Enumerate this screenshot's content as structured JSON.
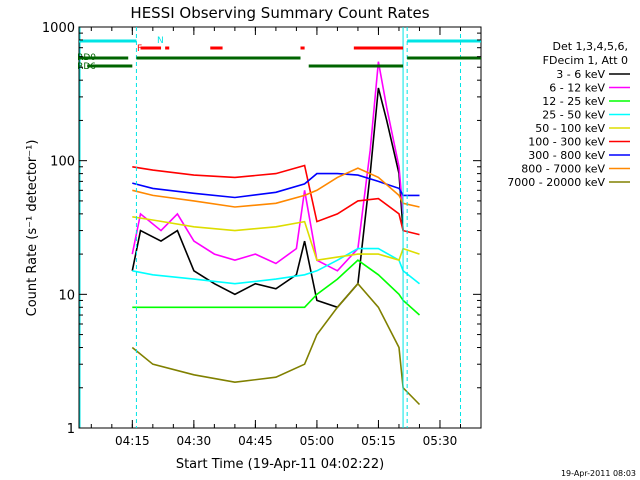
{
  "chart_data": {
    "type": "line",
    "title": "HESSI Observing Summary Count Rates",
    "xlabel": "Start Time (19-Apr-11 04:02:22)",
    "ylabel": "Count Rate (s⁻¹ detector⁻¹)",
    "xlim": [
      "04:02",
      "05:40"
    ],
    "ylim": [
      1,
      1000
    ],
    "yscale": "log",
    "grid": false,
    "legend_placement": "right",
    "x_ticks": [
      "04:15",
      "04:30",
      "04:45",
      "05:00",
      "05:15",
      "05:30"
    ],
    "y_ticks": [
      "1",
      "10",
      "100",
      "1000"
    ],
    "legend_header": [
      "Det 1,3,4,5,6,",
      "FDecim 1, Att 0"
    ],
    "footer": "19-Apr-2011 08:03",
    "flags": [
      {
        "label": "N",
        "color": "#00e5e5"
      },
      {
        "label": "F",
        "color": "#ff0000"
      },
      {
        "label": "RD0",
        "color": "#006400"
      },
      {
        "label": "RD6",
        "color": "#006400"
      }
    ],
    "series": [
      {
        "name": "3 - 6 keV",
        "color": "#000000",
        "x": [
          "04:15",
          "04:17",
          "04:22",
          "04:26",
          "04:30",
          "04:35",
          "04:40",
          "04:45",
          "04:50",
          "04:55",
          "04:57",
          "05:00",
          "05:05",
          "05:10",
          "05:13",
          "05:15",
          "05:17",
          "05:20",
          "05:21"
        ],
        "values": [
          15,
          30,
          25,
          30,
          15,
          12,
          10,
          12,
          11,
          14,
          25,
          9,
          8,
          12,
          80,
          350,
          200,
          80,
          30
        ]
      },
      {
        "name": "6 - 12 keV",
        "color": "#ff00ff",
        "x": [
          "04:15",
          "04:17",
          "04:22",
          "04:26",
          "04:30",
          "04:35",
          "04:40",
          "04:45",
          "04:50",
          "04:55",
          "04:57",
          "05:00",
          "05:05",
          "05:10",
          "05:13",
          "05:15",
          "05:17",
          "05:20",
          "05:21"
        ],
        "values": [
          20,
          40,
          30,
          40,
          25,
          20,
          18,
          20,
          17,
          22,
          60,
          18,
          15,
          22,
          120,
          550,
          250,
          90,
          40
        ]
      },
      {
        "name": "12 - 25 keV",
        "color": "#00ff00",
        "x": [
          "04:15",
          "04:20",
          "04:30",
          "04:40",
          "04:50",
          "04:57",
          "05:00",
          "05:05",
          "05:10",
          "05:15",
          "05:20",
          "05:21",
          "05:25"
        ],
        "values": [
          8,
          8,
          8,
          8,
          8,
          8,
          10,
          13,
          18,
          14,
          10,
          9,
          7
        ]
      },
      {
        "name": "25 - 50 keV",
        "color": "#00ffff",
        "x": [
          "04:15",
          "04:20",
          "04:30",
          "04:40",
          "04:50",
          "04:57",
          "05:00",
          "05:05",
          "05:10",
          "05:15",
          "05:20",
          "05:21",
          "05:25"
        ],
        "values": [
          15,
          14,
          13,
          12,
          13,
          14,
          15,
          18,
          22,
          22,
          18,
          15,
          12
        ]
      },
      {
        "name": "50 - 100 keV",
        "color": "#dddd00",
        "x": [
          "04:15",
          "04:20",
          "04:30",
          "04:40",
          "04:50",
          "04:57",
          "05:00",
          "05:05",
          "05:10",
          "05:15",
          "05:20",
          "05:21",
          "05:25"
        ],
        "values": [
          38,
          36,
          32,
          30,
          32,
          35,
          18,
          19,
          20,
          20,
          18,
          22,
          20
        ]
      },
      {
        "name": "100 - 300 keV",
        "color": "#ff0000",
        "x": [
          "04:15",
          "04:20",
          "04:30",
          "04:40",
          "04:50",
          "04:57",
          "05:00",
          "05:05",
          "05:10",
          "05:15",
          "05:20",
          "05:21",
          "05:25"
        ],
        "values": [
          90,
          85,
          78,
          75,
          80,
          92,
          35,
          40,
          50,
          52,
          40,
          30,
          28
        ]
      },
      {
        "name": "300 - 800 keV",
        "color": "#0000ff",
        "x": [
          "04:15",
          "04:20",
          "04:30",
          "04:40",
          "04:50",
          "04:57",
          "05:00",
          "05:05",
          "05:10",
          "05:15",
          "05:20",
          "05:21",
          "05:25"
        ],
        "values": [
          68,
          62,
          57,
          53,
          58,
          67,
          80,
          80,
          78,
          70,
          62,
          55,
          55
        ]
      },
      {
        "name": "800 - 7000 keV",
        "color": "#ff8800",
        "x": [
          "04:15",
          "04:20",
          "04:30",
          "04:40",
          "04:50",
          "04:57",
          "05:00",
          "05:05",
          "05:10",
          "05:15",
          "05:20",
          "05:21",
          "05:25"
        ],
        "values": [
          60,
          55,
          50,
          45,
          48,
          55,
          60,
          75,
          88,
          75,
          55,
          48,
          45
        ]
      },
      {
        "name": "7000 - 20000 keV",
        "color": "#808000",
        "x": [
          "04:15",
          "04:20",
          "04:30",
          "04:40",
          "04:50",
          "04:57",
          "05:00",
          "05:05",
          "05:10",
          "05:15",
          "05:20",
          "05:21",
          "05:25"
        ],
        "values": [
          4,
          3,
          2.5,
          2.2,
          2.4,
          3,
          5,
          8,
          12,
          8,
          4,
          2,
          1.5
        ]
      }
    ]
  }
}
